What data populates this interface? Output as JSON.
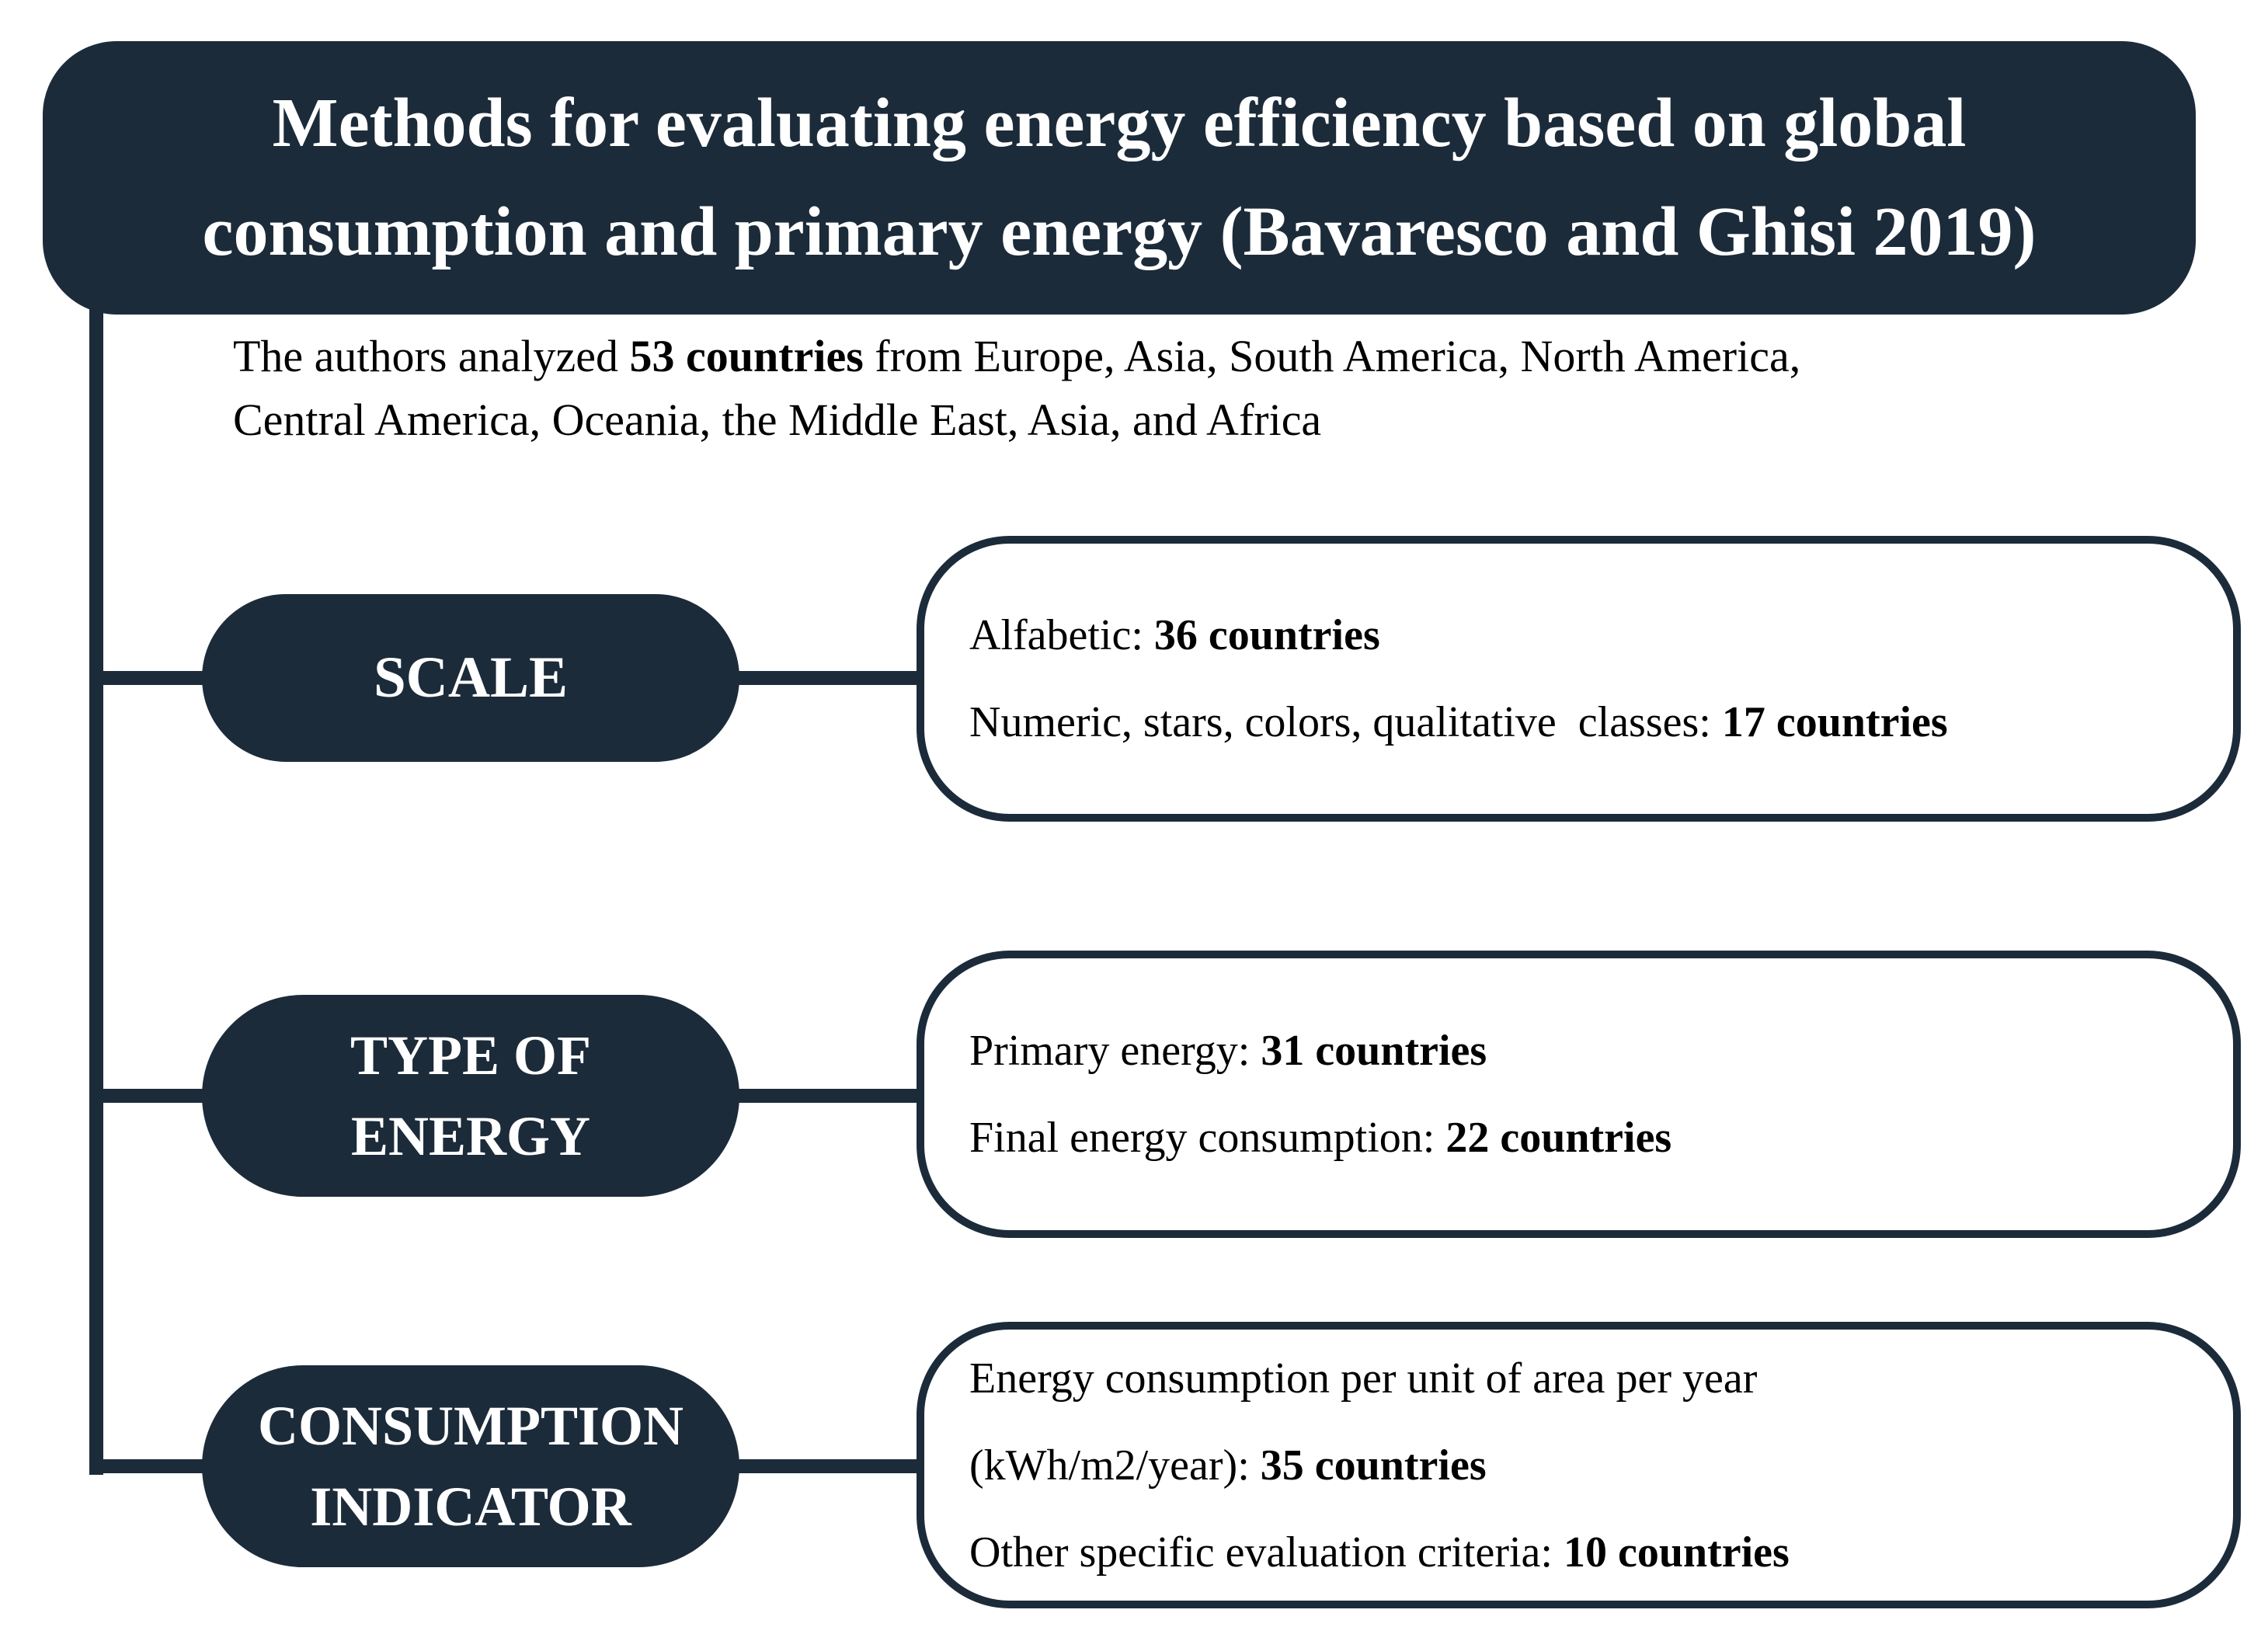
{
  "colors": {
    "navy": "#1c2b3a",
    "box_fill": "#ffffff",
    "body_text": "#000000",
    "header_text": "#ffffff"
  },
  "header": {
    "title": "Methods for evaluating energy efficiency based on global\nconsumption and primary energy (Bavaresco and Ghisi 2019)"
  },
  "intro": {
    "segments": [
      {
        "t": "The authors analyzed "
      },
      {
        "t": "53 countries",
        "b": true
      },
      {
        "t": " from Europe, Asia, South America, North America,\nCentral America, Oceania, the Middle East, Asia, and Africa"
      }
    ]
  },
  "rows": [
    {
      "id": "scale",
      "label": "SCALE",
      "lines": [
        [
          {
            "t": "Alfabetic: "
          },
          {
            "t": "36 countries",
            "b": true
          }
        ],
        [
          {
            "t": "Numeric, stars, colors, qualitative  classes: "
          },
          {
            "t": "17 countries",
            "b": true
          }
        ]
      ]
    },
    {
      "id": "type-of-energy",
      "label": "TYPE OF\nENERGY",
      "lines": [
        [
          {
            "t": "Primary energy: "
          },
          {
            "t": "31 countries",
            "b": true
          }
        ],
        [
          {
            "t": "Final energy consumption: "
          },
          {
            "t": "22 countries",
            "b": true
          }
        ]
      ]
    },
    {
      "id": "consumption-indicator",
      "label": "CONSUMPTION\nINDICATOR",
      "lines": [
        [
          {
            "t": "Energy consumption per unit of area per year"
          }
        ],
        [
          {
            "t": "(kWh/m2/year): "
          },
          {
            "t": "35 countries",
            "b": true
          }
        ],
        [
          {
            "t": "Other specific evaluation criteria: "
          },
          {
            "t": "10 countries",
            "b": true
          }
        ]
      ]
    }
  ]
}
